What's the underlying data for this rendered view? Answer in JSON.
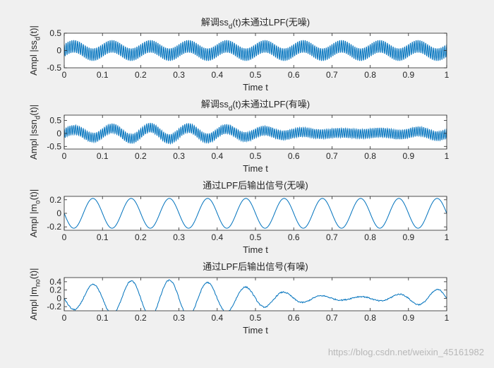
{
  "watermark": "https://blog.csdn.net/weixin_45161982",
  "style": {
    "line_color": "#0072BD",
    "axes_bg": "#ffffff",
    "figure_bg": "#f0f0f0"
  },
  "chart_data": [
    {
      "type": "line",
      "title": "解调ss_d(t)未通过LPF(无噪)",
      "title_parts": {
        "pre": "解调ss",
        "sub": "d",
        "post": "(t)未通过LPF(无噪)"
      },
      "xlabel": "Time t",
      "ylabel_parts": {
        "pre": "Ampl |ss",
        "sub": "d",
        "post": "(t)|"
      },
      "xlim": [
        0,
        1
      ],
      "ylim": [
        -0.5,
        0.5
      ],
      "xticks": [
        0,
        0.1,
        0.2,
        0.3,
        0.4,
        0.5,
        0.6,
        0.7,
        0.8,
        0.9,
        1
      ],
      "xtick_labels": [
        "0",
        "0.1",
        "0.2",
        "0.3",
        "0.4",
        "0.5",
        "0.6",
        "0.7",
        "0.8",
        "0.9",
        "1"
      ],
      "yticks": [
        -0.5,
        0,
        0.5
      ],
      "ytick_labels": [
        "-0.5",
        "0",
        "0.5"
      ],
      "grid": false,
      "signal": {
        "message_amp": 0.12,
        "message_freq_hz": 10,
        "carrier_amp": 0.18,
        "carrier_freq_hz": 200,
        "noise_amp": 0
      }
    },
    {
      "type": "line",
      "title": "解调ss_d(t)未通过LPF(有噪)",
      "title_parts": {
        "pre": "解调ss",
        "sub": "d",
        "post": "(t)未通过LPF(有噪)"
      },
      "xlabel": "Time t",
      "ylabel_parts": {
        "pre": "Ampl |ssn",
        "sub": "d",
        "post": "(t)|"
      },
      "xlim": [
        0,
        1
      ],
      "ylim": [
        -0.6,
        0.7
      ],
      "xticks": [
        0,
        0.1,
        0.2,
        0.3,
        0.4,
        0.5,
        0.6,
        0.7,
        0.8,
        0.9,
        1
      ],
      "xtick_labels": [
        "0",
        "0.1",
        "0.2",
        "0.3",
        "0.4",
        "0.5",
        "0.6",
        "0.7",
        "0.8",
        "0.9",
        "1"
      ],
      "yticks": [
        -0.5,
        0,
        0.5
      ],
      "ytick_labels": [
        "-0.5",
        "0",
        "0.5"
      ],
      "grid": false,
      "signal": {
        "message_amp": 0.12,
        "message_freq_hz": 10,
        "carrier_amp": 0.18,
        "carrier_freq_hz": 200,
        "noise_amp": 0.05
      }
    },
    {
      "type": "line",
      "title": "通过LPF后输出信号(无噪)",
      "title_parts": {
        "pre": "通过LPF后输出信号(无噪)",
        "sub": "",
        "post": ""
      },
      "xlabel": "Time t",
      "ylabel_parts": {
        "pre": "Ampl |m",
        "sub": "o",
        "post": "(t)|"
      },
      "xlim": [
        0,
        1
      ],
      "ylim": [
        -0.25,
        0.25
      ],
      "xticks": [
        0,
        0.1,
        0.2,
        0.3,
        0.4,
        0.5,
        0.6,
        0.7,
        0.8,
        0.9,
        1
      ],
      "xtick_labels": [
        "0",
        "0.1",
        "0.2",
        "0.3",
        "0.4",
        "0.5",
        "0.6",
        "0.7",
        "0.8",
        "0.9",
        "1"
      ],
      "yticks": [
        -0.2,
        0,
        0.2
      ],
      "ytick_labels": [
        "-0.2",
        "0",
        "0.2"
      ],
      "grid": false,
      "signal": {
        "message_amp": 0.22,
        "message_freq_hz": 10,
        "carrier_amp": 0,
        "carrier_freq_hz": 0,
        "noise_amp": 0,
        "phase_rad": 3.1416
      }
    },
    {
      "type": "line",
      "title": "通过LPF后输出信号(有噪)",
      "title_parts": {
        "pre": "通过LPF后输出信号(有噪)",
        "sub": "",
        "post": ""
      },
      "xlabel": "Time t",
      "ylabel_parts": {
        "pre": "Ampl |m",
        "sub": "no",
        "post": "(t)|"
      },
      "xlim": [
        0,
        1
      ],
      "ylim": [
        -0.3,
        0.5
      ],
      "xticks": [
        0,
        0.1,
        0.2,
        0.3,
        0.4,
        0.5,
        0.6,
        0.7,
        0.8,
        0.9,
        1
      ],
      "xtick_labels": [
        "0",
        "0.1",
        "0.2",
        "0.3",
        "0.4",
        "0.5",
        "0.6",
        "0.7",
        "0.8",
        "0.9",
        "1"
      ],
      "yticks": [
        -0.2,
        0,
        0.2,
        0.4
      ],
      "ytick_labels": [
        "-0.2",
        "0",
        "0.2",
        "0.4"
      ],
      "grid": false,
      "signal": {
        "message_amp": 0.24,
        "message_freq_hz": 10,
        "carrier_amp": 0,
        "carrier_freq_hz": 0,
        "noise_amp": 0.1,
        "phase_rad": 3.1416
      }
    }
  ]
}
